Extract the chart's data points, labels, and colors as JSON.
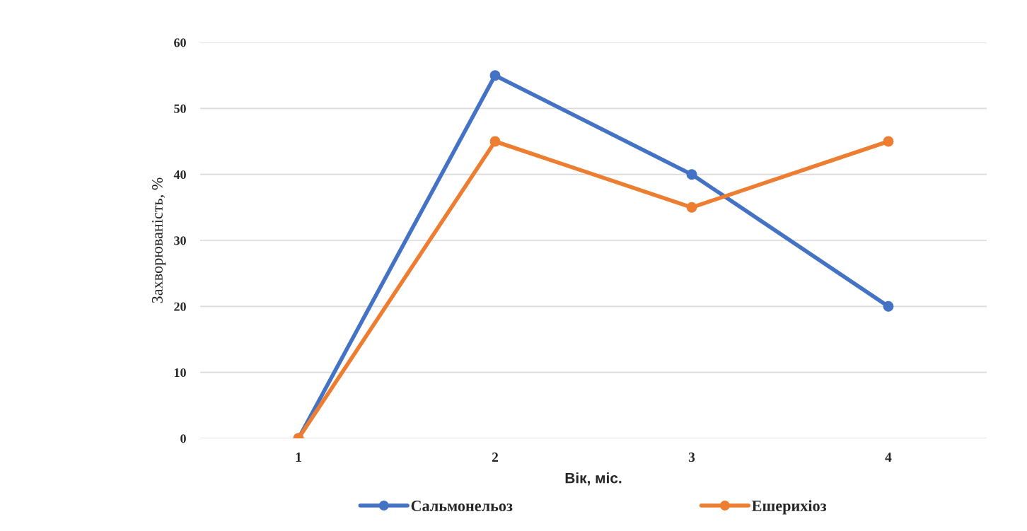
{
  "chart_data": {
    "type": "line",
    "categories": [
      "1",
      "2",
      "3",
      "4"
    ],
    "series": [
      {
        "name": "Сальмонельоз",
        "color": "#4472c4",
        "values": [
          0,
          55,
          40,
          20
        ]
      },
      {
        "name": "Ешерихіоз",
        "color": "#ed7d31",
        "values": [
          0,
          45,
          35,
          45
        ]
      }
    ],
    "xlabel": "Вік, міс.",
    "ylabel": "Захворюваність, %",
    "ylim": [
      0,
      60
    ],
    "yticks": [
      0,
      10,
      20,
      30,
      40,
      50,
      60
    ],
    "grid": "y",
    "legend": "bottom",
    "marker": "circle",
    "line_style": "solid"
  }
}
